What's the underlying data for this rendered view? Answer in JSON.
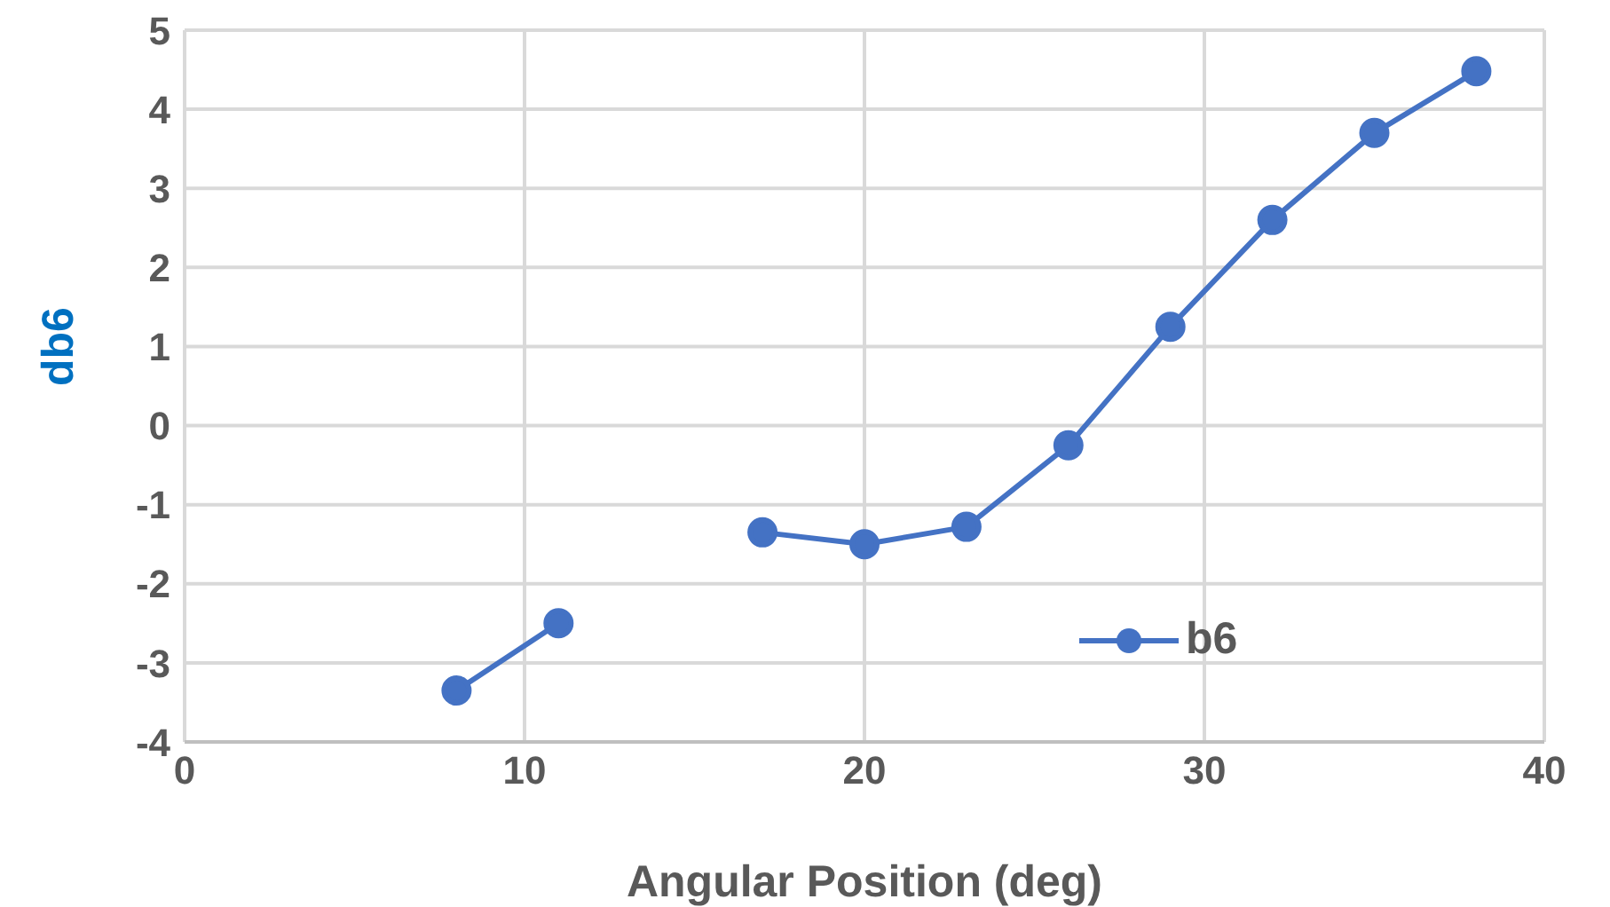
{
  "chart_data": {
    "type": "line",
    "xlabel": "Angular Position (deg)",
    "ylabel": "db6",
    "x": [
      8,
      11,
      14,
      17,
      20,
      23,
      26,
      29,
      32,
      35,
      38
    ],
    "series": [
      {
        "name": "b6",
        "color": "#4472c4",
        "values": [
          -3.35,
          -2.5,
          null,
          -1.35,
          -1.5,
          -1.28,
          -0.25,
          1.25,
          2.6,
          3.7,
          4.48
        ]
      }
    ],
    "xlim": [
      0,
      40
    ],
    "xticks": [
      0,
      10,
      20,
      30,
      40
    ],
    "ylim": [
      -4,
      5
    ],
    "yticks": [
      -4,
      -3,
      -2,
      -1,
      0,
      1,
      2,
      3,
      4,
      5
    ],
    "grid": true,
    "legend": "bottom right",
    "marker": "circle",
    "line_style": "solid"
  }
}
